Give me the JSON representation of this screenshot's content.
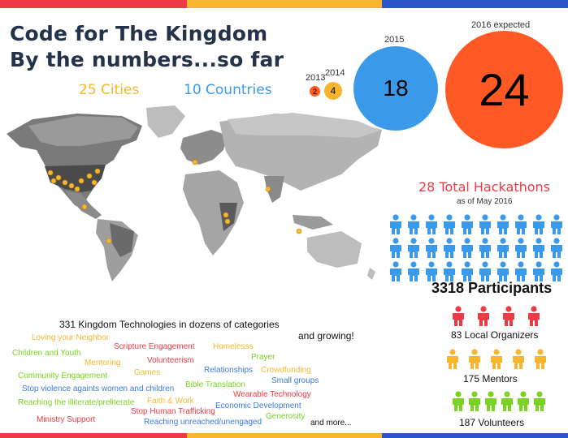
{
  "colors": {
    "red": "#ee3a45",
    "yellow": "#f7b62e",
    "blue": "#2b55c9",
    "orange": "#ff5a26",
    "sky": "#3a9ae9",
    "green": "#7ad321",
    "navy": "#24324a"
  },
  "title_line1": "Code for The Kingdom",
  "title_line2": "By the numbers...so far",
  "cities": "25 Cities",
  "countries": "10 Countries",
  "years": [
    {
      "year": "2013",
      "value": "2"
    },
    {
      "year": "2014",
      "value": "4"
    },
    {
      "year": "2015",
      "value": "18"
    },
    {
      "year": "2016 expected",
      "value": "24"
    }
  ],
  "hackathons_title": "28 Total Hackathons",
  "hackathons_sub": "as of May 2016",
  "participants": "3318 Participants",
  "organizers": "83 Local Organizers",
  "mentors": "175 Mentors",
  "volunteers": "187 Volunteers",
  "technologies_heading": "331 Kingdom Technologies  in dozens of categories",
  "and_growing": "and growing!",
  "and_more": "and more...",
  "categories": [
    {
      "text": "Loving your Neighbor",
      "color": "#f7b62e"
    },
    {
      "text": "Scripture Engagement",
      "color": "#ee3a45"
    },
    {
      "text": "Homelesss",
      "color": "#f7b62e"
    },
    {
      "text": "Children and Youth",
      "color": "#7ad321"
    },
    {
      "text": "Prayer",
      "color": "#7ad321"
    },
    {
      "text": "Mentoring",
      "color": "#f7b62e"
    },
    {
      "text": "Volunteerism",
      "color": "#ee3a45"
    },
    {
      "text": "Relationships",
      "color": "#3a7be0"
    },
    {
      "text": "Crowdfunding",
      "color": "#f7b62e"
    },
    {
      "text": "Games",
      "color": "#f7b62e"
    },
    {
      "text": "Community Engagement",
      "color": "#7ad321"
    },
    {
      "text": "Small groups",
      "color": "#3a7be0"
    },
    {
      "text": "Bible Translation",
      "color": "#7ad321"
    },
    {
      "text": "Stop violence againts women and children",
      "color": "#3a7be0"
    },
    {
      "text": "Wearable Technology",
      "color": "#ee3a45"
    },
    {
      "text": "Faith & Work",
      "color": "#f7b62e"
    },
    {
      "text": "Reaching the illiterate/preliterate",
      "color": "#7ad321"
    },
    {
      "text": "Economic Development",
      "color": "#3a7be0"
    },
    {
      "text": "Stop Human Trafficking",
      "color": "#ee3a45"
    },
    {
      "text": "Generosity",
      "color": "#7ad321"
    },
    {
      "text": "Ministry Support",
      "color": "#ee3a45"
    },
    {
      "text": "Reaching unreached/unengaged",
      "color": "#3a7be0"
    }
  ]
}
